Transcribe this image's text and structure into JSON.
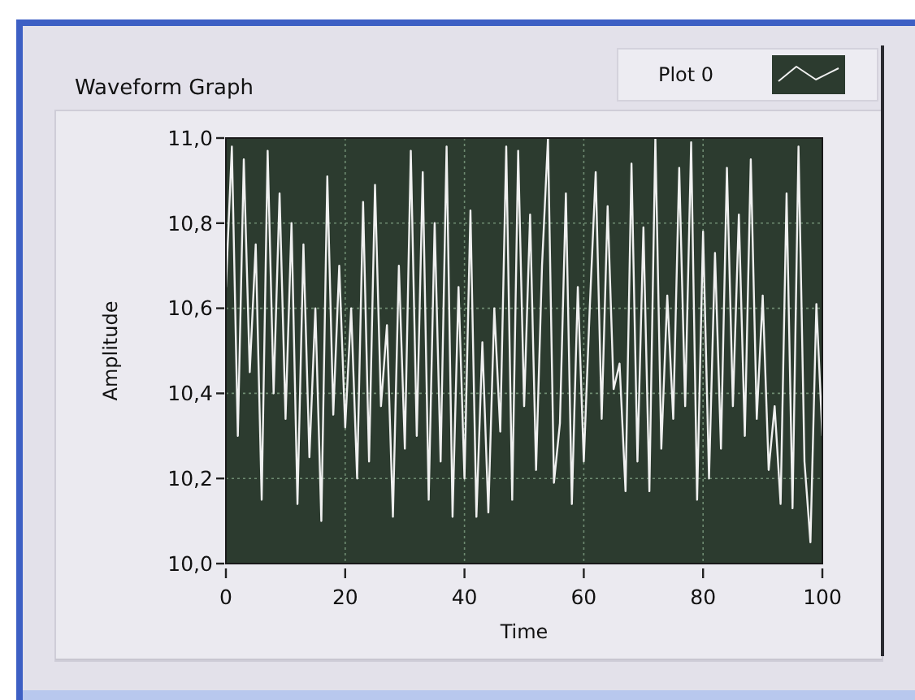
{
  "chart_data": {
    "type": "line",
    "title": "Waveform Graph",
    "xlabel": "Time",
    "ylabel": "Amplitude",
    "x": [
      0,
      1,
      2,
      3,
      4,
      5,
      6,
      7,
      8,
      9,
      10,
      11,
      12,
      13,
      14,
      15,
      16,
      17,
      18,
      19,
      20,
      21,
      22,
      23,
      24,
      25,
      26,
      27,
      28,
      29,
      30,
      31,
      32,
      33,
      34,
      35,
      36,
      37,
      38,
      39,
      40,
      41,
      42,
      43,
      44,
      45,
      46,
      47,
      48,
      49,
      50,
      51,
      52,
      53,
      54,
      55,
      56,
      57,
      58,
      59,
      60,
      61,
      62,
      63,
      64,
      65,
      66,
      67,
      68,
      69,
      70,
      71,
      72,
      73,
      74,
      75,
      76,
      77,
      78,
      79,
      80,
      81,
      82,
      83,
      84,
      85,
      86,
      87,
      88,
      89,
      90,
      91,
      92,
      93,
      94,
      95,
      96,
      97,
      98,
      99,
      100
    ],
    "series": [
      {
        "name": "Plot 0",
        "color": "#f0f0f0",
        "values": [
          10.65,
          10.98,
          10.3,
          10.95,
          10.45,
          10.75,
          10.15,
          10.97,
          10.4,
          10.87,
          10.34,
          10.8,
          10.14,
          10.75,
          10.25,
          10.6,
          10.1,
          10.91,
          10.35,
          10.7,
          10.32,
          10.6,
          10.2,
          10.85,
          10.24,
          10.89,
          10.37,
          10.56,
          10.11,
          10.7,
          10.27,
          10.97,
          10.3,
          10.92,
          10.15,
          10.8,
          10.24,
          10.98,
          10.11,
          10.65,
          10.2,
          10.83,
          10.11,
          10.52,
          10.12,
          10.6,
          10.31,
          10.98,
          10.15,
          10.97,
          10.37,
          10.82,
          10.22,
          10.7,
          11.0,
          10.19,
          10.33,
          10.87,
          10.14,
          10.65,
          10.24,
          10.6,
          10.92,
          10.34,
          10.84,
          10.41,
          10.47,
          10.17,
          10.94,
          10.24,
          10.79,
          10.17,
          11.0,
          10.27,
          10.63,
          10.34,
          10.93,
          10.37,
          10.99,
          10.15,
          10.78,
          10.2,
          10.73,
          10.27,
          10.93,
          10.37,
          10.82,
          10.3,
          10.95,
          10.34,
          10.63,
          10.22,
          10.37,
          10.14,
          10.87,
          10.13,
          10.98,
          10.24,
          10.05,
          10.61,
          10.3
        ]
      }
    ],
    "xlim": [
      0,
      100
    ],
    "xticks": [
      0,
      20,
      40,
      60,
      80,
      100
    ],
    "ylim": [
      10,
      11
    ],
    "yticks": [
      {
        "value": 10,
        "label": "10,0"
      },
      {
        "value": 10.2,
        "label": "10,2"
      },
      {
        "value": 10.4,
        "label": "10,4"
      },
      {
        "value": 10.6,
        "label": "10,6"
      },
      {
        "value": 10.8,
        "label": "10,8"
      },
      {
        "value": 11,
        "label": "11,0"
      }
    ],
    "grid": true,
    "legend": "top right"
  }
}
